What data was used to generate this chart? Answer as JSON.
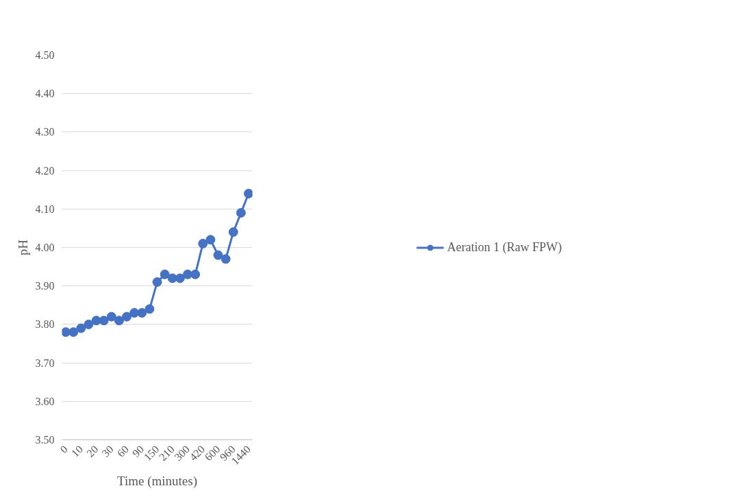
{
  "chart_data": {
    "type": "line",
    "xlabel": "Time (minutes)",
    "ylabel": "pH",
    "categories": [
      "0",
      null,
      "10",
      null,
      "20",
      null,
      "30",
      null,
      "60",
      null,
      "90",
      null,
      "150",
      null,
      "210",
      null,
      "300",
      null,
      "420",
      null,
      "600",
      null,
      "960",
      null,
      "1440"
    ],
    "series": [
      {
        "name": "Aeration 1 (Raw FPW)",
        "color": "#4472c4",
        "values": [
          3.78,
          3.78,
          3.79,
          3.8,
          3.81,
          3.81,
          3.82,
          3.81,
          3.82,
          3.83,
          3.83,
          3.84,
          3.91,
          3.93,
          3.92,
          3.92,
          3.93,
          3.93,
          4.01,
          4.02,
          3.98,
          3.97,
          4.04,
          4.09,
          4.14
        ]
      }
    ],
    "ylim": [
      3.5,
      4.5
    ],
    "yticks": [
      {
        "value": 3.5,
        "label": "3.50"
      },
      {
        "value": 3.6,
        "label": "3.60"
      },
      {
        "value": 3.7,
        "label": "3.70"
      },
      {
        "value": 3.8,
        "label": "3.80"
      },
      {
        "value": 3.9,
        "label": "3.90"
      },
      {
        "value": 4.0,
        "label": "4.00"
      },
      {
        "value": 4.1,
        "label": "4.10"
      },
      {
        "value": 4.2,
        "label": "4.20"
      },
      {
        "value": 4.3,
        "label": "4.30"
      },
      {
        "value": 4.4,
        "label": "4.40"
      },
      {
        "value": 4.5,
        "label": "4.50"
      }
    ],
    "grid": "y",
    "legend": "right",
    "marker": "circle",
    "line_style": "solid"
  }
}
